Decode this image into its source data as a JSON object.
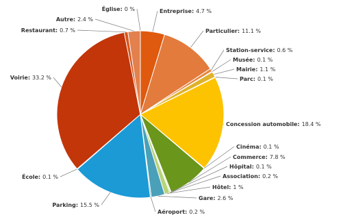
{
  "chart_data": {
    "type": "pie",
    "categories": [
      "Église:",
      "Entreprise:",
      "Particulier:",
      "Station-service:",
      "Musée:",
      "Mairie:",
      "Parc:",
      "Concession automobile:",
      "Cinéma:",
      "Commerce:",
      "Hôpital:",
      "Association:",
      "Hôtel:",
      "Gare:",
      "Aéroport:",
      "Parking:",
      "École:",
      "Voirie:",
      "Restaurant:",
      "Autre:"
    ],
    "values": [
      0,
      4.7,
      11.1,
      0.6,
      0.1,
      1.1,
      0.1,
      18.4,
      0.1,
      7.8,
      0.1,
      0.2,
      1,
      2.6,
      0.2,
      15.5,
      0.1,
      33.2,
      0.7,
      2.4
    ],
    "value_labels": [
      "0 %",
      "4.7 %",
      "11.1 %",
      "0.6 %",
      "0.1 %",
      "1.1 %",
      "0.1 %",
      "18.4 %",
      "0.1 %",
      "7.8 %",
      "0.1 %",
      "0.2 %",
      "1 %",
      "2.6 %",
      "0.2 %",
      "15.5 %",
      "0.1 %",
      "33.2 %",
      "0.7 %",
      "2.4 %"
    ],
    "colors": [
      "#e8702a",
      "#df5a0e",
      "#e27b3c",
      "#e8853f",
      "#e99a4f",
      "#e0b22a",
      "#f2c21a",
      "#fdc300",
      "#7da52a",
      "#6a961c",
      "#8cb43a",
      "#a6c65a",
      "#b8d47a",
      "#4aa0b8",
      "#2274a8",
      "#1b9ad6",
      "#2aa8e0",
      "#c2360a",
      "#d9541c",
      "#e2814d"
    ]
  }
}
